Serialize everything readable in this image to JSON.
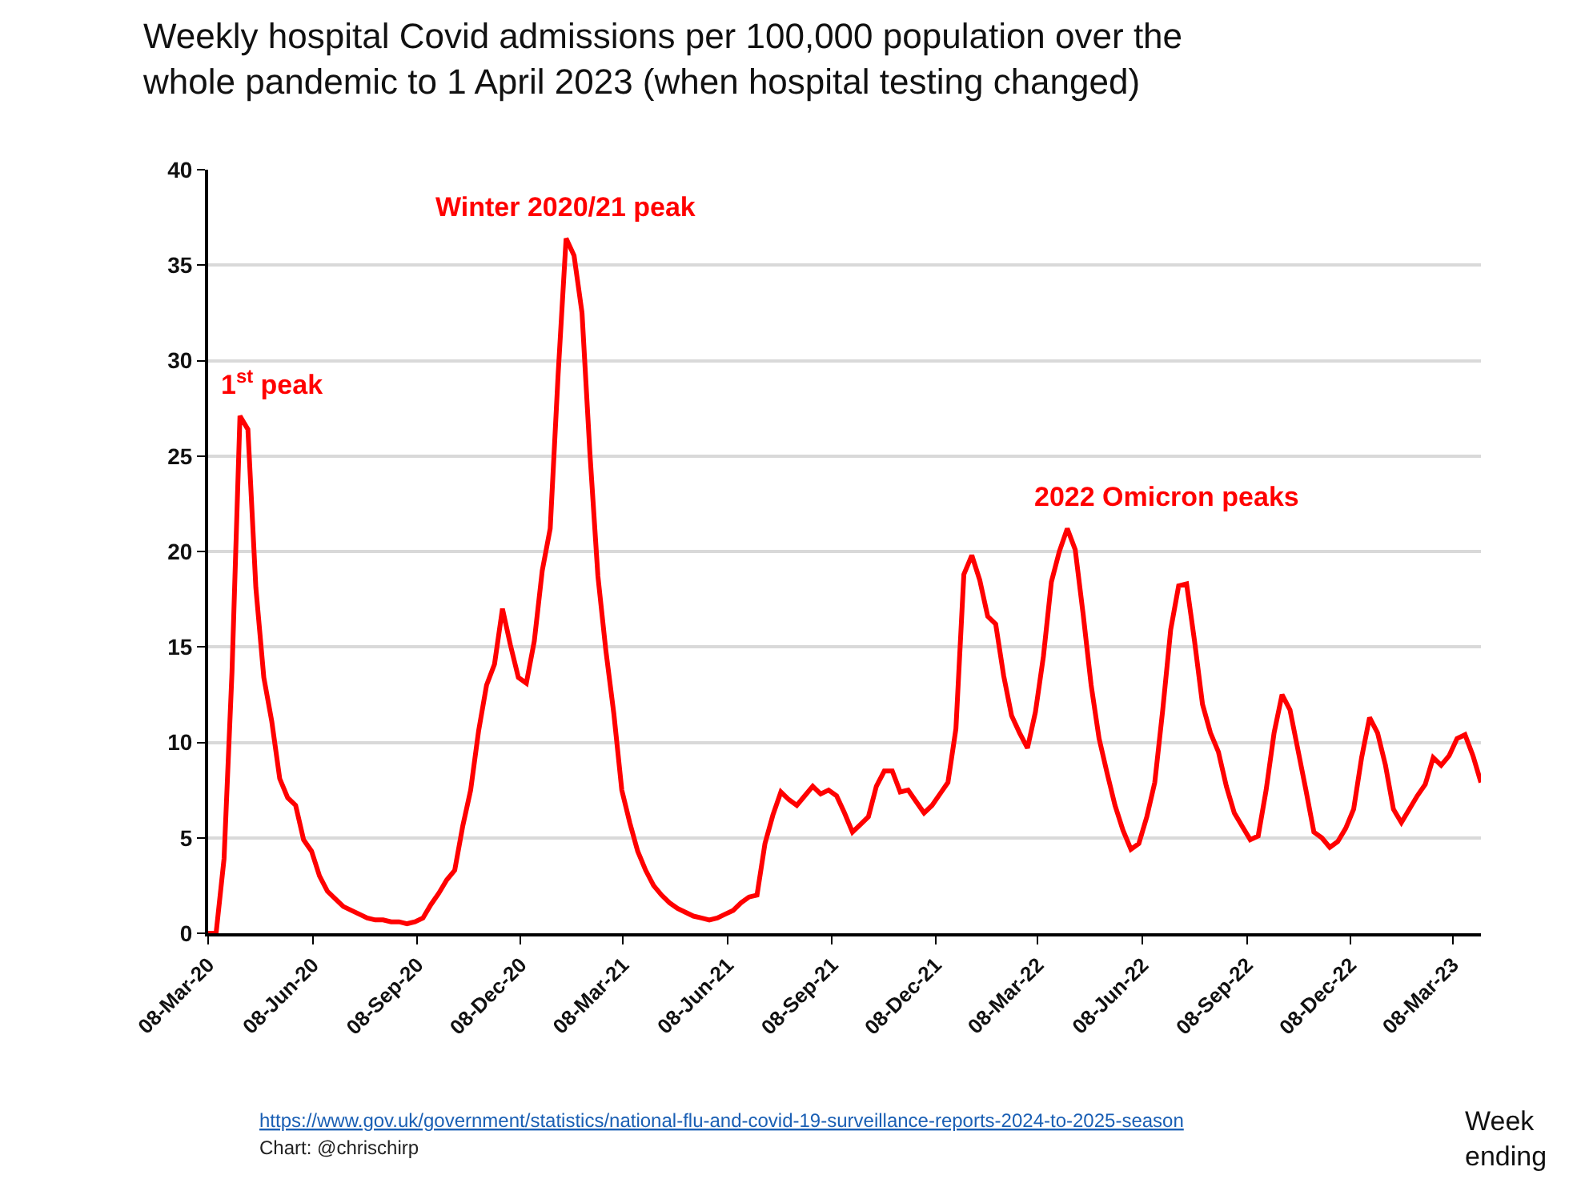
{
  "chart_data": {
    "type": "line",
    "title": "Weekly hospital Covid admissions per 100,000 population over the whole pandemic to 1 April 2023 (when hospital testing changed)",
    "xlabel": "Week ending",
    "x": [
      "2020-03-08",
      "2020-03-15",
      "2020-03-22",
      "2020-03-29",
      "2020-04-05",
      "2020-04-12",
      "2020-04-19",
      "2020-04-26",
      "2020-05-03",
      "2020-05-10",
      "2020-05-17",
      "2020-05-24",
      "2020-05-31",
      "2020-06-07",
      "2020-06-14",
      "2020-06-21",
      "2020-06-28",
      "2020-07-05",
      "2020-07-12",
      "2020-07-19",
      "2020-07-26",
      "2020-08-02",
      "2020-08-09",
      "2020-08-16",
      "2020-08-23",
      "2020-08-30",
      "2020-09-06",
      "2020-09-13",
      "2020-09-20",
      "2020-09-27",
      "2020-10-04",
      "2020-10-11",
      "2020-10-18",
      "2020-10-25",
      "2020-11-01",
      "2020-11-08",
      "2020-11-15",
      "2020-11-22",
      "2020-11-29",
      "2020-12-06",
      "2020-12-13",
      "2020-12-20",
      "2020-12-27",
      "2021-01-03",
      "2021-01-10",
      "2021-01-17",
      "2021-01-24",
      "2021-01-31",
      "2021-02-07",
      "2021-02-14",
      "2021-02-21",
      "2021-02-28",
      "2021-03-07",
      "2021-03-14",
      "2021-03-21",
      "2021-03-28",
      "2021-04-04",
      "2021-04-11",
      "2021-04-18",
      "2021-04-25",
      "2021-05-02",
      "2021-05-09",
      "2021-05-16",
      "2021-05-23",
      "2021-05-30",
      "2021-06-06",
      "2021-06-13",
      "2021-06-20",
      "2021-06-27",
      "2021-07-04",
      "2021-07-11",
      "2021-07-18",
      "2021-07-25",
      "2021-08-01",
      "2021-08-08",
      "2021-08-15",
      "2021-08-22",
      "2021-08-29",
      "2021-09-05",
      "2021-09-12",
      "2021-09-19",
      "2021-09-26",
      "2021-10-03",
      "2021-10-10",
      "2021-10-17",
      "2021-10-24",
      "2021-10-31",
      "2021-11-07",
      "2021-11-14",
      "2021-11-21",
      "2021-11-28",
      "2021-12-05",
      "2021-12-12",
      "2021-12-19",
      "2021-12-26",
      "2022-01-02",
      "2022-01-09",
      "2022-01-16",
      "2022-01-23",
      "2022-01-30",
      "2022-02-06",
      "2022-02-13",
      "2022-02-20",
      "2022-02-27",
      "2022-03-06",
      "2022-03-13",
      "2022-03-20",
      "2022-03-27",
      "2022-04-03",
      "2022-04-10",
      "2022-04-17",
      "2022-04-24",
      "2022-05-01",
      "2022-05-08",
      "2022-05-15",
      "2022-05-22",
      "2022-05-29",
      "2022-06-05",
      "2022-06-12",
      "2022-06-19",
      "2022-06-26",
      "2022-07-03",
      "2022-07-10",
      "2022-07-17",
      "2022-07-24",
      "2022-07-31",
      "2022-08-07",
      "2022-08-14",
      "2022-08-21",
      "2022-08-28",
      "2022-09-04",
      "2022-09-11",
      "2022-09-18",
      "2022-09-25",
      "2022-10-02",
      "2022-10-09",
      "2022-10-16",
      "2022-10-23",
      "2022-10-30",
      "2022-11-06",
      "2022-11-13",
      "2022-11-20",
      "2022-11-27",
      "2022-12-04",
      "2022-12-11",
      "2022-12-18",
      "2022-12-25",
      "2023-01-01",
      "2023-01-08",
      "2023-01-15",
      "2023-01-22",
      "2023-01-29",
      "2023-02-05",
      "2023-02-12",
      "2023-02-19",
      "2023-02-26",
      "2023-03-05",
      "2023-03-12",
      "2023-03-19",
      "2023-03-26",
      "2023-04-02"
    ],
    "series": [
      {
        "color": "#ff0000",
        "values": [
          0,
          0,
          3.9,
          13.7,
          27.1,
          26.4,
          18.1,
          13.4,
          11.1,
          8.1,
          7.1,
          6.7,
          4.9,
          4.3,
          3.0,
          2.2,
          1.8,
          1.4,
          1.2,
          1.0,
          0.8,
          0.7,
          0.7,
          0.6,
          0.6,
          0.5,
          0.6,
          0.8,
          1.5,
          2.1,
          2.8,
          3.3,
          5.6,
          7.5,
          10.6,
          13.0,
          14.1,
          17.0,
          15.1,
          13.4,
          13.1,
          15.3,
          19.0,
          21.2,
          29.3,
          36.4,
          35.5,
          32.5,
          25.1,
          18.7,
          14.8,
          11.5,
          7.5,
          5.8,
          4.3,
          3.3,
          2.5,
          2.0,
          1.6,
          1.3,
          1.1,
          0.9,
          0.8,
          0.7,
          0.8,
          1.0,
          1.2,
          1.6,
          1.9,
          2.0,
          4.7,
          6.2,
          7.4,
          7.0,
          6.7,
          7.2,
          7.7,
          7.3,
          7.5,
          7.2,
          6.3,
          5.3,
          5.7,
          6.1,
          7.7,
          8.5,
          8.5,
          7.4,
          7.5,
          6.9,
          6.3,
          6.7,
          7.3,
          7.9,
          10.7,
          18.8,
          19.8,
          18.5,
          16.6,
          16.2,
          13.5,
          11.4,
          10.5,
          9.7,
          11.6,
          14.5,
          18.4,
          20.0,
          21.2,
          20.1,
          16.7,
          13.0,
          10.2,
          8.4,
          6.7,
          5.4,
          4.4,
          4.7,
          6.1,
          7.9,
          11.7,
          15.9,
          18.2,
          18.3,
          15.3,
          12.0,
          10.5,
          9.5,
          7.7,
          6.3,
          5.6,
          4.9,
          5.1,
          7.5,
          10.5,
          12.5,
          11.7,
          9.6,
          7.5,
          5.3,
          5.0,
          4.5,
          4.8,
          5.5,
          6.5,
          9.2,
          11.3,
          10.5,
          8.8,
          6.5,
          5.8,
          6.5,
          7.2,
          7.8,
          9.2,
          8.8,
          9.3,
          10.2,
          10.4,
          9.3,
          7.9
        ]
      }
    ],
    "xlim": [
      "2020-03-08",
      "2023-04-02"
    ],
    "xticks": [
      {
        "value": "2020-03-08",
        "label": "08-Mar-20"
      },
      {
        "value": "2020-06-08",
        "label": "08-Jun-20"
      },
      {
        "value": "2020-09-08",
        "label": "08-Sep-20"
      },
      {
        "value": "2020-12-08",
        "label": "08-Dec-20"
      },
      {
        "value": "2021-03-08",
        "label": "08-Mar-21"
      },
      {
        "value": "2021-06-08",
        "label": "08-Jun-21"
      },
      {
        "value": "2021-09-08",
        "label": "08-Sep-21"
      },
      {
        "value": "2021-12-08",
        "label": "08-Dec-21"
      },
      {
        "value": "2022-03-08",
        "label": "08-Mar-22"
      },
      {
        "value": "2022-06-08",
        "label": "08-Jun-22"
      },
      {
        "value": "2022-09-08",
        "label": "08-Sep-22"
      },
      {
        "value": "2022-12-08",
        "label": "08-Dec-22"
      },
      {
        "value": "2023-03-08",
        "label": "08-Mar-23"
      }
    ],
    "ylim": [
      0,
      40
    ],
    "yticks": [
      0,
      5,
      10,
      15,
      20,
      25,
      30,
      35,
      40
    ],
    "grid": "y",
    "marker": "none",
    "line_style": "solid",
    "annotations": [
      {
        "text": "1$^{st}$ peak",
        "x": "2020-04-05",
        "y": 27.1
      },
      {
        "text": "Winter 2020/21 peak",
        "x": "2021-01-17",
        "y": 36.4
      },
      {
        "text": "2022 Omicron peaks",
        "x": "2022-03-27",
        "y": 21.2
      },
      "https://www.gov.uk/government/statistics/national-flu-and-covid-19-surveillance-reports-2024-to-2025-season",
      "Chart: @chrischirp"
    ]
  }
}
